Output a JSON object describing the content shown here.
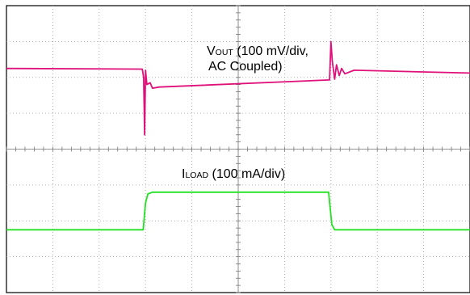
{
  "chart_data": {
    "type": "line",
    "grid": true,
    "x_divisions": 10,
    "y_divisions": 8,
    "series": [
      {
        "name": "VOUT",
        "color": "#e0107a",
        "label_main": "V",
        "label_sub": "OUT",
        "label_rest": " (100 mV/div,",
        "label_line2": "AC Coupled)",
        "points": [
          [
            0.0,
            2.25
          ],
          [
            2.93,
            2.23
          ],
          [
            2.96,
            2.0
          ],
          [
            2.98,
            0.4
          ],
          [
            3.0,
            2.2
          ],
          [
            3.03,
            1.8
          ],
          [
            3.1,
            1.85
          ],
          [
            3.15,
            1.7
          ],
          [
            3.3,
            1.73
          ],
          [
            6.97,
            1.93
          ],
          [
            7.0,
            3.0
          ],
          [
            7.03,
            2.45
          ],
          [
            7.08,
            1.95
          ],
          [
            7.12,
            2.35
          ],
          [
            7.18,
            2.05
          ],
          [
            7.23,
            2.25
          ],
          [
            7.3,
            2.1
          ],
          [
            7.5,
            2.2
          ],
          [
            10.0,
            2.12
          ]
        ]
      },
      {
        "name": "ILOAD",
        "color": "#22e022",
        "label_main": "I",
        "label_sub": "LOAD",
        "label_rest": " (100 mA/div)",
        "points": [
          [
            0.0,
            -2.25
          ],
          [
            2.95,
            -2.25
          ],
          [
            3.0,
            -1.5
          ],
          [
            3.05,
            -1.25
          ],
          [
            3.15,
            -1.2
          ],
          [
            6.95,
            -1.2
          ],
          [
            7.02,
            -2.1
          ],
          [
            7.08,
            -2.25
          ],
          [
            10.0,
            -2.25
          ]
        ]
      }
    ]
  }
}
